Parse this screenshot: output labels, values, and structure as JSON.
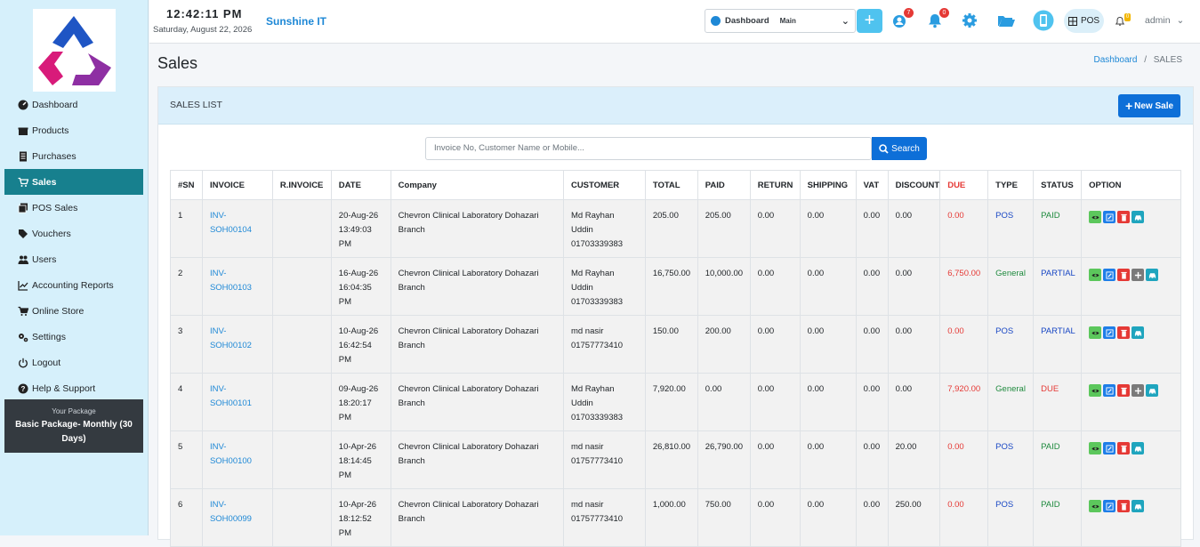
{
  "topbar": {
    "time": "12:42:11 PM",
    "date": "Saturday, August 22, 2026",
    "brand": "Sunshine IT",
    "dashboard_label": "Dashboard",
    "dashboard_value": "Main",
    "plus": "+",
    "badge_one": "7",
    "badge_bell": "0",
    "badge_small": "0",
    "pos_label": "POS",
    "admin": "admin"
  },
  "sidebar": {
    "items": [
      {
        "label": "Dashboard",
        "icon": "dashboard-icon"
      },
      {
        "label": "Products",
        "icon": "gift-icon"
      },
      {
        "label": "Purchases",
        "icon": "document-icon"
      },
      {
        "label": "Sales",
        "icon": "cart-icon"
      },
      {
        "label": "POS Sales",
        "icon": "copy-icon"
      },
      {
        "label": "Vouchers",
        "icon": "voucher-icon"
      },
      {
        "label": "Users",
        "icon": "users-icon"
      },
      {
        "label": "Accounting Reports",
        "icon": "chart-icon"
      },
      {
        "label": "Online Store",
        "icon": "cart-icon"
      },
      {
        "label": "Settings",
        "icon": "gears-icon"
      },
      {
        "label": "Logout",
        "icon": "power-icon"
      },
      {
        "label": "Help & Support",
        "icon": "question-icon"
      }
    ],
    "package_caption": "Your Package",
    "package_name": "Basic Package- Monthly (30 Days)"
  },
  "page": {
    "title": "Sales",
    "crumb_link": "Dashboard",
    "crumb_sep": "/",
    "crumb_current": "SALES"
  },
  "card": {
    "title": "SALES LIST",
    "new_button": "New Sale",
    "search_placeholder": "Invoice No, Customer Name or Mobile...",
    "search_button": "Search"
  },
  "table": {
    "headers": [
      "#SN",
      "INVOICE",
      "R.INVOICE",
      "DATE",
      "Company",
      "CUSTOMER",
      "TOTAL",
      "PAID",
      "RETURN",
      "SHIPPING",
      "VAT",
      "DISCOUNT",
      "DUE",
      "TYPE",
      "STATUS",
      "OPTION"
    ],
    "rows": [
      {
        "sn": "1",
        "inv_a": "INV-",
        "inv_b": "SOH00104",
        "rinv": "",
        "d1": "20-Aug-26",
        "d2": "13:49:03",
        "d3": "PM",
        "company": "Chevron Clinical Laboratory Dohazari Branch",
        "c1": "Md Rayhan",
        "c2": "Uddin",
        "c3": "01703339383",
        "total": "205.00",
        "paid": "205.00",
        "ret": "0.00",
        "ship": "0.00",
        "vat": "0.00",
        "disc": "0.00",
        "due": "0.00",
        "type": "POS",
        "status": "PAID"
      },
      {
        "sn": "2",
        "inv_a": "INV-",
        "inv_b": "SOH00103",
        "rinv": "",
        "d1": "16-Aug-26",
        "d2": "16:04:35",
        "d3": "PM",
        "company": "Chevron Clinical Laboratory Dohazari Branch",
        "c1": "Md Rayhan",
        "c2": "Uddin",
        "c3": "01703339383",
        "total": "16,750.00",
        "paid": "10,000.00",
        "ret": "0.00",
        "ship": "0.00",
        "vat": "0.00",
        "disc": "0.00",
        "due": "6,750.00",
        "type": "General",
        "status": "PARTIAL"
      },
      {
        "sn": "3",
        "inv_a": "INV-",
        "inv_b": "SOH00102",
        "rinv": "",
        "d1": "10-Aug-26",
        "d2": "16:42:54",
        "d3": "PM",
        "company": "Chevron Clinical Laboratory Dohazari Branch",
        "c1": "md nasir",
        "c2": "01757773410",
        "c3": "",
        "total": "150.00",
        "paid": "200.00",
        "ret": "0.00",
        "ship": "0.00",
        "vat": "0.00",
        "disc": "0.00",
        "due": "0.00",
        "type": "POS",
        "status": "PARTIAL"
      },
      {
        "sn": "4",
        "inv_a": "INV-",
        "inv_b": "SOH00101",
        "rinv": "",
        "d1": "09-Aug-26",
        "d2": "18:20:17",
        "d3": "PM",
        "company": "Chevron Clinical Laboratory Dohazari Branch",
        "c1": "Md Rayhan",
        "c2": "Uddin",
        "c3": "01703339383",
        "total": "7,920.00",
        "paid": "0.00",
        "ret": "0.00",
        "ship": "0.00",
        "vat": "0.00",
        "disc": "0.00",
        "due": "7,920.00",
        "type": "General",
        "status": "DUE"
      },
      {
        "sn": "5",
        "inv_a": "INV-",
        "inv_b": "SOH00100",
        "rinv": "",
        "d1": "10-Apr-26",
        "d2": "18:14:45",
        "d3": "PM",
        "company": "Chevron Clinical Laboratory Dohazari Branch",
        "c1": "md nasir",
        "c2": "01757773410",
        "c3": "",
        "total": "26,810.00",
        "paid": "26,790.00",
        "ret": "0.00",
        "ship": "0.00",
        "vat": "0.00",
        "disc": "20.00",
        "due": "0.00",
        "type": "POS",
        "status": "PAID"
      },
      {
        "sn": "6",
        "inv_a": "INV-",
        "inv_b": "SOH00099",
        "rinv": "",
        "d1": "10-Apr-26",
        "d2": "18:12:52",
        "d3": "PM",
        "company": "Chevron Clinical Laboratory Dohazari Branch",
        "c1": "md nasir",
        "c2": "01757773410",
        "c3": "",
        "total": "1,000.00",
        "paid": "750.00",
        "ret": "0.00",
        "ship": "0.00",
        "vat": "0.00",
        "disc": "250.00",
        "due": "0.00",
        "type": "POS",
        "status": "PAID"
      }
    ]
  }
}
